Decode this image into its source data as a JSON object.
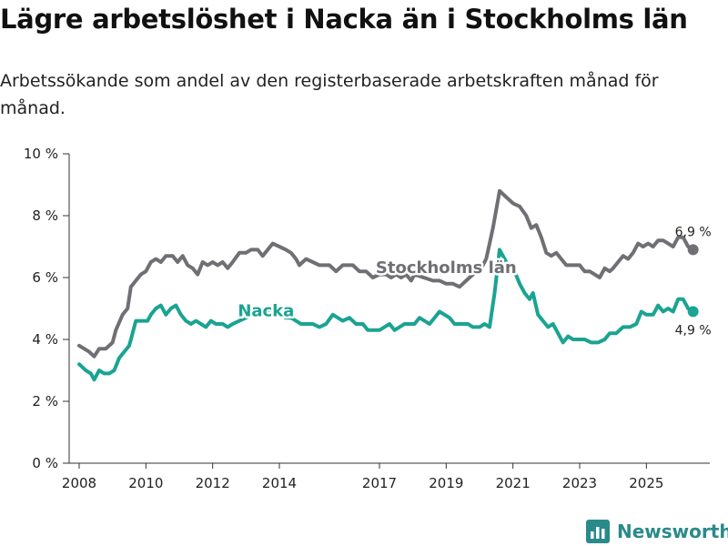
{
  "title": "Lägre arbetslöshet i Nacka än i Stockholms län",
  "subtitle": "Arbetssökande som andel av den registerbaserade arbetskraften månad för månad.",
  "brand": {
    "name": "Newsworthy",
    "icon": "bar-chart-logo-icon",
    "color": "#2a8a8a"
  },
  "chart_data": {
    "type": "line",
    "title": "Lägre arbetslöshet i Nacka än i Stockholms län",
    "subtitle": "Arbetssökande som andel av den registerbaserade arbetskraften månad för månad.",
    "xlabel": "",
    "ylabel": "",
    "xlim": [
      2007.7,
      2026.9
    ],
    "ylim": [
      0,
      10
    ],
    "grid": false,
    "x_ticks": [
      2008,
      2010,
      2012,
      2014,
      2017,
      2019,
      2021,
      2023,
      2025
    ],
    "x_tick_labels": [
      "2008",
      "2010",
      "2012",
      "2014",
      "2017",
      "2019",
      "2021",
      "2023",
      "2025"
    ],
    "y_ticks": [
      0,
      2,
      4,
      6,
      8,
      10
    ],
    "y_tick_labels": [
      "0 %",
      "2 %",
      "4 %",
      "6 %",
      "8 %",
      "10 %"
    ],
    "series": [
      {
        "name": "Stockholms län",
        "color": "#6f6f74",
        "end_label": "6,9 %",
        "points": [
          [
            2008.0,
            3.8
          ],
          [
            2008.3,
            3.6
          ],
          [
            2008.45,
            3.45
          ],
          [
            2008.6,
            3.7
          ],
          [
            2008.8,
            3.7
          ],
          [
            2009.0,
            3.9
          ],
          [
            2009.1,
            4.3
          ],
          [
            2009.3,
            4.8
          ],
          [
            2009.45,
            5.0
          ],
          [
            2009.55,
            5.7
          ],
          [
            2009.7,
            5.9
          ],
          [
            2009.85,
            6.1
          ],
          [
            2010.0,
            6.2
          ],
          [
            2010.15,
            6.5
          ],
          [
            2010.3,
            6.6
          ],
          [
            2010.45,
            6.5
          ],
          [
            2010.6,
            6.7
          ],
          [
            2010.8,
            6.7
          ],
          [
            2010.95,
            6.5
          ],
          [
            2011.1,
            6.7
          ],
          [
            2011.25,
            6.4
          ],
          [
            2011.4,
            6.3
          ],
          [
            2011.55,
            6.1
          ],
          [
            2011.7,
            6.5
          ],
          [
            2011.85,
            6.4
          ],
          [
            2012.0,
            6.5
          ],
          [
            2012.15,
            6.4
          ],
          [
            2012.3,
            6.5
          ],
          [
            2012.45,
            6.3
          ],
          [
            2012.6,
            6.5
          ],
          [
            2012.8,
            6.8
          ],
          [
            2013.0,
            6.8
          ],
          [
            2013.15,
            6.9
          ],
          [
            2013.35,
            6.9
          ],
          [
            2013.5,
            6.7
          ],
          [
            2013.65,
            6.9
          ],
          [
            2013.8,
            7.1
          ],
          [
            2014.0,
            7.0
          ],
          [
            2014.2,
            6.9
          ],
          [
            2014.35,
            6.8
          ],
          [
            2014.5,
            6.6
          ],
          [
            2014.6,
            6.4
          ],
          [
            2014.8,
            6.6
          ],
          [
            2015.0,
            6.5
          ],
          [
            2015.2,
            6.4
          ],
          [
            2015.5,
            6.4
          ],
          [
            2015.7,
            6.2
          ],
          [
            2015.9,
            6.4
          ],
          [
            2016.2,
            6.4
          ],
          [
            2016.4,
            6.2
          ],
          [
            2016.6,
            6.2
          ],
          [
            2016.8,
            6.0
          ],
          [
            2017.0,
            6.1
          ],
          [
            2017.2,
            6.1
          ],
          [
            2017.35,
            6.0
          ],
          [
            2017.5,
            6.1
          ],
          [
            2017.65,
            6.0
          ],
          [
            2017.8,
            6.1
          ],
          [
            2017.95,
            5.9
          ],
          [
            2018.05,
            6.1
          ],
          [
            2018.6,
            5.9
          ],
          [
            2018.8,
            5.9
          ],
          [
            2019.0,
            5.8
          ],
          [
            2019.2,
            5.8
          ],
          [
            2019.4,
            5.7
          ],
          [
            2019.6,
            5.9
          ],
          [
            2019.8,
            6.1
          ],
          [
            2020.0,
            6.2
          ],
          [
            2020.2,
            6.6
          ],
          [
            2020.4,
            7.6
          ],
          [
            2020.6,
            8.8
          ],
          [
            2020.8,
            8.6
          ],
          [
            2021.0,
            8.4
          ],
          [
            2021.2,
            8.3
          ],
          [
            2021.4,
            8.0
          ],
          [
            2021.55,
            7.6
          ],
          [
            2021.7,
            7.7
          ],
          [
            2021.85,
            7.3
          ],
          [
            2022.0,
            6.8
          ],
          [
            2022.15,
            6.7
          ],
          [
            2022.3,
            6.8
          ],
          [
            2022.45,
            6.6
          ],
          [
            2022.6,
            6.4
          ],
          [
            2022.8,
            6.4
          ],
          [
            2023.0,
            6.4
          ],
          [
            2023.15,
            6.2
          ],
          [
            2023.3,
            6.2
          ],
          [
            2023.45,
            6.1
          ],
          [
            2023.6,
            6.0
          ],
          [
            2023.75,
            6.3
          ],
          [
            2023.9,
            6.2
          ],
          [
            2024.0,
            6.3
          ],
          [
            2024.15,
            6.5
          ],
          [
            2024.3,
            6.7
          ],
          [
            2024.45,
            6.6
          ],
          [
            2024.6,
            6.8
          ],
          [
            2024.75,
            7.1
          ],
          [
            2024.9,
            7.0
          ],
          [
            2025.05,
            7.1
          ],
          [
            2025.2,
            7.0
          ],
          [
            2025.35,
            7.2
          ],
          [
            2025.5,
            7.2
          ],
          [
            2025.65,
            7.1
          ],
          [
            2025.8,
            7.0
          ],
          [
            2025.95,
            7.3
          ],
          [
            2026.1,
            7.3
          ],
          [
            2026.25,
            7.0
          ],
          [
            2026.4,
            6.9
          ]
        ]
      },
      {
        "name": "Nacka",
        "color": "#1ba393",
        "end_label": "4,9 %",
        "points": [
          [
            2008.0,
            3.2
          ],
          [
            2008.2,
            3.0
          ],
          [
            2008.35,
            2.9
          ],
          [
            2008.45,
            2.7
          ],
          [
            2008.6,
            3.0
          ],
          [
            2008.75,
            2.9
          ],
          [
            2008.9,
            2.9
          ],
          [
            2009.05,
            3.0
          ],
          [
            2009.2,
            3.4
          ],
          [
            2009.35,
            3.6
          ],
          [
            2009.5,
            3.8
          ],
          [
            2009.6,
            4.2
          ],
          [
            2009.7,
            4.6
          ],
          [
            2009.85,
            4.6
          ],
          [
            2010.05,
            4.6
          ],
          [
            2010.15,
            4.8
          ],
          [
            2010.3,
            5.0
          ],
          [
            2010.45,
            5.1
          ],
          [
            2010.6,
            4.8
          ],
          [
            2010.75,
            5.0
          ],
          [
            2010.9,
            5.1
          ],
          [
            2011.05,
            4.8
          ],
          [
            2011.2,
            4.6
          ],
          [
            2011.35,
            4.5
          ],
          [
            2011.5,
            4.6
          ],
          [
            2011.65,
            4.5
          ],
          [
            2011.8,
            4.4
          ],
          [
            2011.95,
            4.6
          ],
          [
            2012.1,
            4.5
          ],
          [
            2012.3,
            4.5
          ],
          [
            2012.45,
            4.4
          ],
          [
            2012.6,
            4.5
          ],
          [
            2012.8,
            4.6
          ],
          [
            2013.0,
            4.7
          ],
          [
            2013.2,
            4.8
          ],
          [
            2013.4,
            4.9
          ],
          [
            2013.6,
            4.9
          ],
          [
            2013.8,
            4.9
          ],
          [
            2014.0,
            4.8
          ],
          [
            2014.2,
            4.7
          ],
          [
            2014.35,
            4.7
          ],
          [
            2014.5,
            4.6
          ],
          [
            2014.65,
            4.5
          ],
          [
            2014.85,
            4.5
          ],
          [
            2015.0,
            4.5
          ],
          [
            2015.2,
            4.4
          ],
          [
            2015.4,
            4.5
          ],
          [
            2015.6,
            4.8
          ],
          [
            2015.75,
            4.7
          ],
          [
            2015.9,
            4.6
          ],
          [
            2016.1,
            4.7
          ],
          [
            2016.3,
            4.5
          ],
          [
            2016.5,
            4.5
          ],
          [
            2016.65,
            4.3
          ],
          [
            2016.8,
            4.3
          ],
          [
            2017.0,
            4.3
          ],
          [
            2017.15,
            4.4
          ],
          [
            2017.3,
            4.5
          ],
          [
            2017.45,
            4.3
          ],
          [
            2017.6,
            4.4
          ],
          [
            2017.75,
            4.5
          ],
          [
            2017.9,
            4.5
          ],
          [
            2018.05,
            4.5
          ],
          [
            2018.2,
            4.7
          ],
          [
            2018.35,
            4.6
          ],
          [
            2018.5,
            4.5
          ],
          [
            2018.65,
            4.7
          ],
          [
            2018.8,
            4.9
          ],
          [
            2018.95,
            4.8
          ],
          [
            2019.1,
            4.7
          ],
          [
            2019.25,
            4.5
          ],
          [
            2019.45,
            4.5
          ],
          [
            2019.65,
            4.5
          ],
          [
            2019.8,
            4.4
          ],
          [
            2020.0,
            4.4
          ],
          [
            2020.15,
            4.5
          ],
          [
            2020.3,
            4.4
          ],
          [
            2020.45,
            5.5
          ],
          [
            2020.6,
            6.9
          ],
          [
            2020.75,
            6.6
          ],
          [
            2020.9,
            6.3
          ],
          [
            2021.05,
            6.2
          ],
          [
            2021.2,
            5.8
          ],
          [
            2021.35,
            5.5
          ],
          [
            2021.5,
            5.3
          ],
          [
            2021.6,
            5.5
          ],
          [
            2021.75,
            4.8
          ],
          [
            2021.9,
            4.6
          ],
          [
            2022.05,
            4.4
          ],
          [
            2022.2,
            4.5
          ],
          [
            2022.35,
            4.2
          ],
          [
            2022.5,
            3.9
          ],
          [
            2022.65,
            4.1
          ],
          [
            2022.8,
            4.0
          ],
          [
            2023.0,
            4.0
          ],
          [
            2023.15,
            4.0
          ],
          [
            2023.35,
            3.9
          ],
          [
            2023.55,
            3.9
          ],
          [
            2023.75,
            4.0
          ],
          [
            2023.9,
            4.2
          ],
          [
            2024.1,
            4.2
          ],
          [
            2024.3,
            4.4
          ],
          [
            2024.5,
            4.4
          ],
          [
            2024.7,
            4.5
          ],
          [
            2024.85,
            4.9
          ],
          [
            2025.0,
            4.8
          ],
          [
            2025.2,
            4.8
          ],
          [
            2025.35,
            5.1
          ],
          [
            2025.5,
            4.9
          ],
          [
            2025.65,
            5.0
          ],
          [
            2025.8,
            4.9
          ],
          [
            2025.95,
            5.3
          ],
          [
            2026.1,
            5.3
          ],
          [
            2026.25,
            5.0
          ],
          [
            2026.4,
            4.9
          ]
        ]
      }
    ]
  }
}
